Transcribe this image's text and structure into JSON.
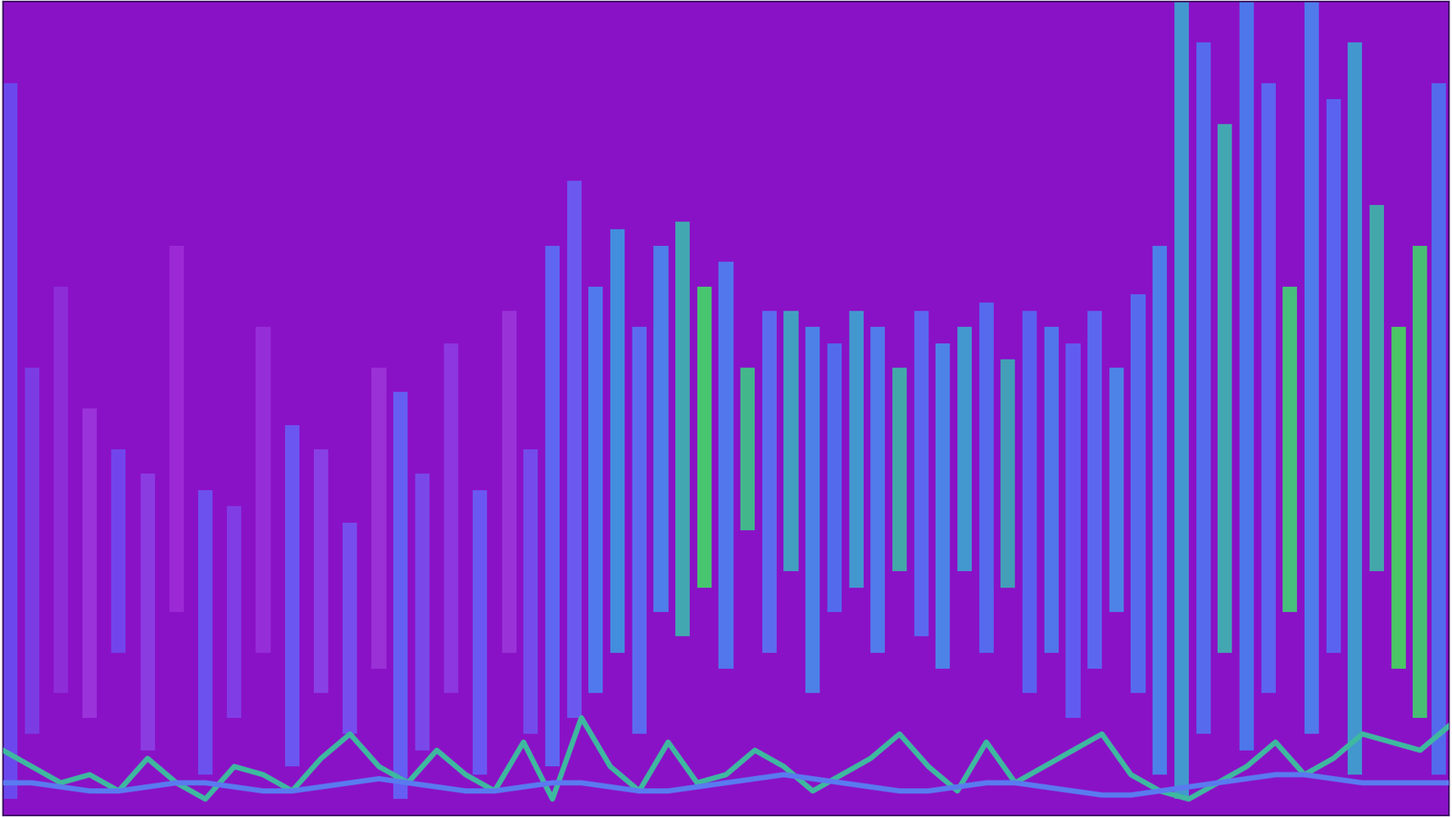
{
  "chart_data": {
    "type": "bar",
    "tick_labels": false,
    "xlim": [
      0,
      100
    ],
    "ylim": [
      0,
      100
    ],
    "series": [
      {
        "type": "bar",
        "x": [
          0.5,
          2,
          4,
          6,
          8,
          10,
          12,
          14,
          16,
          18,
          20,
          22,
          24,
          26,
          27.5,
          29,
          31,
          33,
          35,
          36.5,
          38,
          39.5,
          41,
          42.5,
          44,
          45.5,
          47,
          48.5,
          50,
          51.5,
          53,
          54.5,
          56,
          57.5,
          59,
          60.5,
          62,
          63.5,
          65,
          66.5,
          68,
          69.5,
          71,
          72.5,
          74,
          75.5,
          77,
          78.5,
          80,
          81.5,
          83,
          84.5,
          86,
          87.5,
          89,
          90.5,
          92,
          93.5,
          95,
          96.5,
          98,
          99.3
        ],
        "low": [
          2,
          10,
          15,
          12,
          20,
          8,
          25,
          5,
          12,
          20,
          6,
          15,
          10,
          18,
          2,
          8,
          15,
          5,
          20,
          10,
          6,
          12,
          15,
          20,
          10,
          25,
          22,
          28,
          18,
          35,
          20,
          30,
          15,
          25,
          28,
          20,
          30,
          22,
          18,
          30,
          20,
          28,
          15,
          20,
          12,
          18,
          25,
          15,
          5,
          2,
          10,
          20,
          8,
          15,
          25,
          10,
          20,
          5,
          30,
          18,
          12,
          5
        ],
        "high": [
          90,
          55,
          65,
          50,
          45,
          42,
          70,
          40,
          38,
          60,
          48,
          45,
          36,
          55,
          52,
          42,
          58,
          40,
          62,
          45,
          70,
          78,
          65,
          72,
          60,
          70,
          73,
          65,
          68,
          55,
          62,
          62,
          60,
          58,
          62,
          60,
          55,
          62,
          58,
          60,
          63,
          56,
          62,
          60,
          58,
          62,
          55,
          64,
          70,
          100,
          95,
          85,
          100,
          90,
          65,
          100,
          88,
          95,
          75,
          60,
          70,
          90
        ],
        "colors": [
          "#6a4cf0",
          "#7b3fe6",
          "#8e2fd9",
          "#9b35dc",
          "#7048ee",
          "#8a3fe3",
          "#9d2bd6",
          "#6b55f2",
          "#8040e8",
          "#9630da",
          "#6a5af4",
          "#8844e6",
          "#7552f0",
          "#9b33d8",
          "#6462f5",
          "#7a4cec",
          "#8d3ae2",
          "#6a5cf4",
          "#9a35d9",
          "#7250ee",
          "#5d6cf4",
          "#6a5ef2",
          "#4d7ff0",
          "#3f95e0",
          "#5a70f2",
          "#4a85ec",
          "#3fb0b0",
          "#45d06a",
          "#4f7df0",
          "#3fc088",
          "#5a72f2",
          "#3fa8c0",
          "#4a88ea",
          "#5070f0",
          "#3f9fd0",
          "#4e80ee",
          "#3fb0a8",
          "#5a6ef2",
          "#4a8ae8",
          "#3fa0d0",
          "#5470f0",
          "#3fa8b8",
          "#5866f2",
          "#4e7cee",
          "#6060f4",
          "#5a6cf2",
          "#4a8ae8",
          "#5470f0",
          "#4a86ea",
          "#3fa0d0",
          "#5470f0",
          "#3fb0b0",
          "#4a7cee",
          "#5a6af2",
          "#45c878",
          "#4e80ee",
          "#5868f2",
          "#3f9fd0",
          "#3fb0a8",
          "#48d060",
          "#45c870",
          "#5070f0"
        ]
      },
      {
        "type": "line",
        "color": "#3fb8a0",
        "x": [
          0,
          2,
          4,
          6,
          8,
          10,
          12,
          14,
          16,
          18,
          20,
          22,
          24,
          26,
          28,
          30,
          32,
          34,
          36,
          38,
          40,
          42,
          44,
          46,
          48,
          50,
          52,
          54,
          56,
          58,
          60,
          62,
          64,
          66,
          68,
          70,
          72,
          74,
          76,
          78,
          80,
          82,
          84,
          86,
          88,
          90,
          92,
          94,
          96,
          98,
          100
        ],
        "values": [
          8,
          6,
          4,
          5,
          3,
          7,
          4,
          2,
          6,
          5,
          3,
          7,
          10,
          6,
          4,
          8,
          5,
          3,
          9,
          2,
          12,
          6,
          3,
          9,
          4,
          5,
          8,
          6,
          3,
          5,
          7,
          10,
          6,
          3,
          9,
          4,
          6,
          8,
          10,
          5,
          3,
          2,
          4,
          6,
          9,
          5,
          7,
          10,
          9,
          8,
          11
        ]
      },
      {
        "type": "line",
        "color": "#5a7af0",
        "x": [
          0,
          2,
          4,
          6,
          8,
          10,
          12,
          14,
          16,
          18,
          20,
          22,
          24,
          26,
          28,
          30,
          32,
          34,
          36,
          38,
          40,
          42,
          44,
          46,
          48,
          50,
          52,
          54,
          56,
          58,
          60,
          62,
          64,
          66,
          68,
          70,
          72,
          74,
          76,
          78,
          80,
          82,
          84,
          86,
          88,
          90,
          92,
          94,
          96,
          98,
          100
        ],
        "values": [
          4,
          4,
          3.5,
          3,
          3,
          3.5,
          4,
          4,
          3.5,
          3,
          3,
          3.5,
          4,
          4.5,
          4,
          3.5,
          3,
          3,
          3.5,
          4,
          4,
          3.5,
          3,
          3,
          3.5,
          4,
          4.5,
          5,
          4.5,
          4,
          3.5,
          3,
          3,
          3.5,
          4,
          4,
          3.5,
          3,
          2.5,
          2.5,
          3,
          3.5,
          4,
          4.5,
          5,
          5,
          4.5,
          4,
          4,
          4,
          4
        ]
      }
    ]
  }
}
